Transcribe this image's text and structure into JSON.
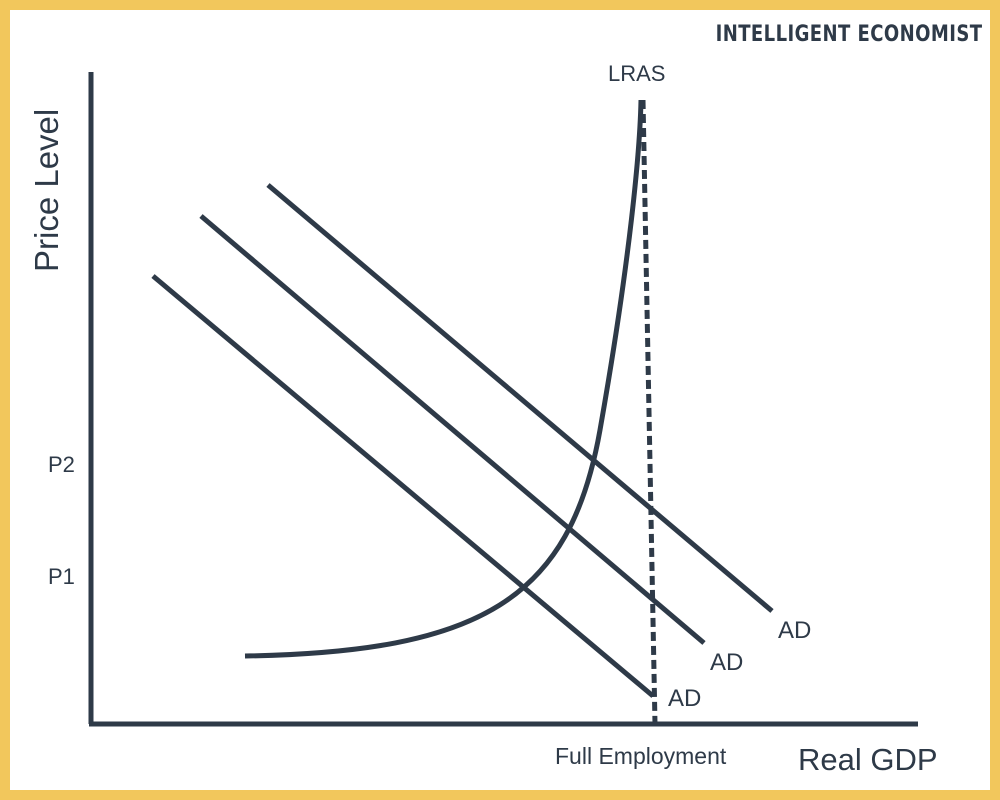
{
  "brand": "INTELLIGENT ECONOMIST",
  "colors": {
    "frame": "#f2c75c",
    "ink": "#2e3a48",
    "background": "#ffffff"
  },
  "axes": {
    "y_label": "Price Level",
    "x_label": "Real GDP",
    "y_ticks": [
      "P2",
      "P1"
    ],
    "x_ticks": [
      "Full Employment"
    ]
  },
  "curves": {
    "lras_label": "LRAS",
    "ad_labels": [
      "AD",
      "AD",
      "AD"
    ]
  }
}
